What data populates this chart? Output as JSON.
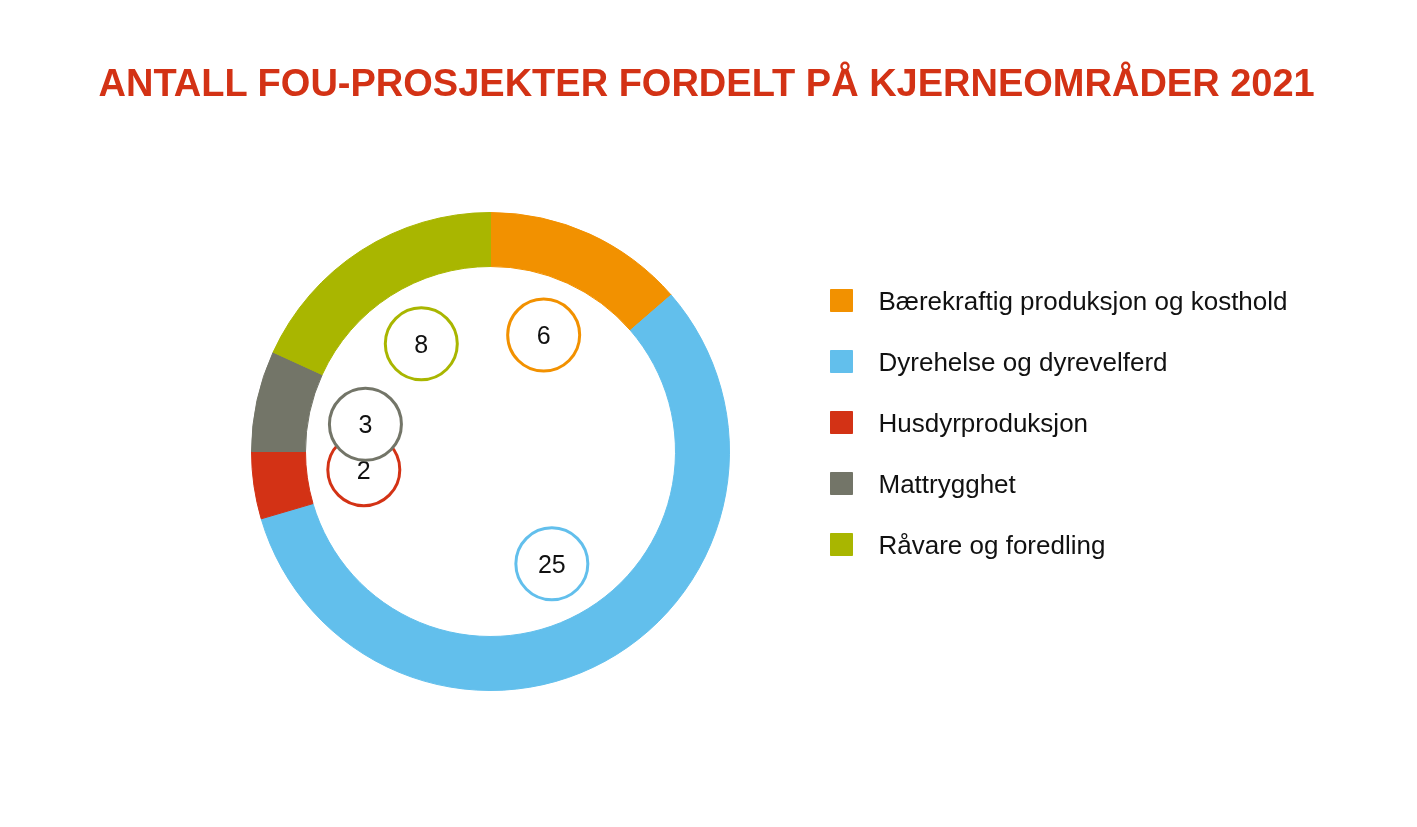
{
  "chart_data": {
    "type": "donut",
    "title": "ANTALL FOU-PROSJEKTER FORDELT PÅ KJERNEOMRÅDER 2021",
    "categories": [
      "Bærekraftig produksjon og kosthold",
      "Dyrehelse og dyrevelferd",
      "Husdyrproduksjon",
      "Mattrygghet",
      "Råvare og foredling"
    ],
    "values": [
      6,
      25,
      2,
      3,
      8
    ],
    "colors": [
      "#f29100",
      "#62bfec",
      "#d33215",
      "#737568",
      "#a9b600"
    ],
    "data_labels": true,
    "legend": "right"
  }
}
